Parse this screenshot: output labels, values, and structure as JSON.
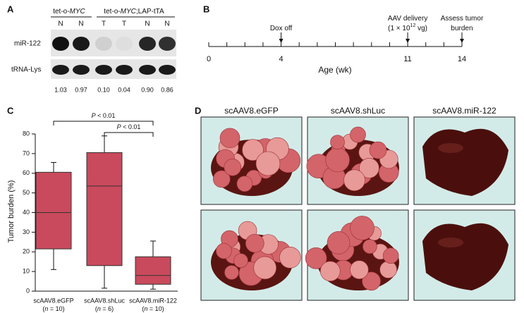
{
  "panel_a": {
    "label": "A",
    "groups": [
      [
        "tet-o-",
        "MYC"
      ],
      [
        "tet-o-",
        "MYC",
        ";LAP-tTA"
      ]
    ],
    "lanes": [
      "N",
      "N",
      "T",
      "T",
      "N",
      "N"
    ],
    "rows": [
      "miR-122",
      "tRNA-Lys"
    ],
    "quant": [
      "1.03",
      "0.97",
      "0.10",
      "0.04",
      "0.90",
      "0.86"
    ]
  },
  "panel_b": {
    "label": "B",
    "xlim": [
      0,
      14
    ],
    "ticks": [
      0,
      1,
      2,
      3,
      4,
      5,
      6,
      7,
      8,
      9,
      10,
      11,
      12,
      13,
      14
    ],
    "tick_labels": [
      0,
      4,
      11,
      14
    ],
    "axis_label": "Age (wk)",
    "events": [
      {
        "at": 4,
        "lines": [
          [
            "Dox off"
          ]
        ]
      },
      {
        "at": 11,
        "lines": [
          [
            "AAV delivery"
          ],
          [
            "(1 × 10",
            "12",
            " vg)"
          ]
        ]
      },
      {
        "at": 14,
        "lines": [
          [
            "Assess tumor"
          ],
          [
            "burden"
          ]
        ]
      }
    ]
  },
  "chart_data": {
    "type": "box",
    "label": "C",
    "ylabel": "Tumor burden (%)",
    "ylim": [
      0,
      80
    ],
    "yticks": [
      0,
      10,
      20,
      30,
      40,
      50,
      60,
      70,
      80
    ],
    "categories": [
      "scAAV8.eGFP",
      "scAAV8.shLuc",
      "scAAV8.miR-122"
    ],
    "n_labels": [
      [
        "(",
        "n",
        " = 10)"
      ],
      [
        "(",
        "n",
        " = 6)"
      ],
      [
        "(",
        "n",
        " = 10)"
      ]
    ],
    "color": "#c94a5c",
    "boxes": [
      {
        "min": 11,
        "q1": 21.5,
        "median": 40,
        "q3": 60.5,
        "max": 65.5
      },
      {
        "min": 1.5,
        "q1": 13,
        "median": 53.5,
        "q3": 70.5,
        "max": 79
      },
      {
        "min": 1,
        "q1": 3.5,
        "median": 8,
        "q3": 17.5,
        "max": 25.5
      }
    ],
    "annotations": [
      [
        "P",
        " < 0.01"
      ],
      [
        "P",
        " < 0.01"
      ]
    ]
  },
  "panel_d": {
    "label": "D",
    "columns": [
      "scAAV8.eGFP",
      "scAAV8.shLuc",
      "scAAV8.miR-122"
    ]
  }
}
